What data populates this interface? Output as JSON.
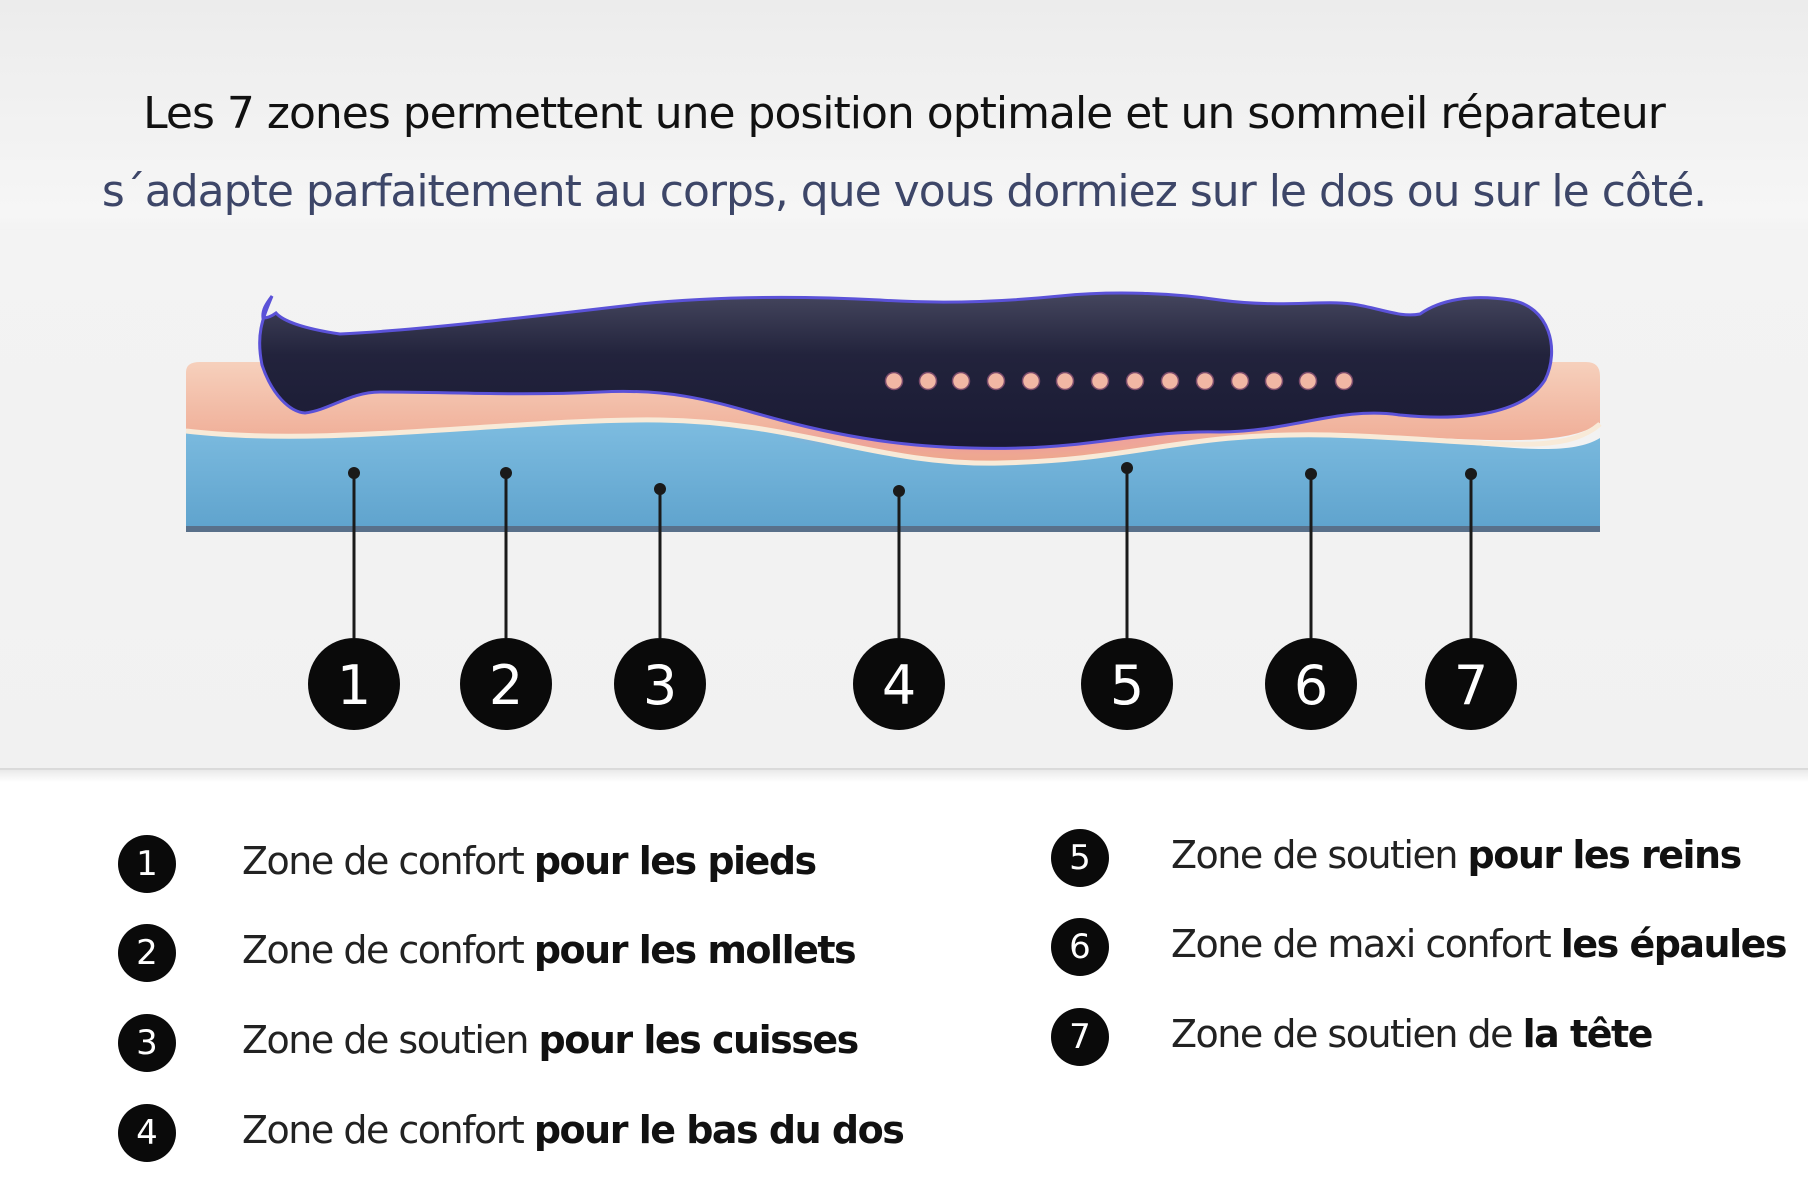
{
  "header": {
    "title": "Les 7 zones permettent une position optimale et un sommeil réparateur",
    "subtitle": "s´adapte parfaitement au corps, que vous dormiez sur le dos ou sur le côté."
  },
  "diagram": {
    "zone_labels": [
      "1",
      "2",
      "3",
      "4",
      "5",
      "6",
      "7"
    ],
    "colors": {
      "foam_base": "#6cb0d8",
      "comfort_layer": "#f1b29a",
      "body": "#23243f",
      "body_outline": "#5b52d8",
      "spine_dots": "#f1b7a4",
      "badge": "#0a0a0a"
    }
  },
  "legend": {
    "items": [
      {
        "num": "1",
        "light": "Zone de confort",
        "bold": "pour les pieds"
      },
      {
        "num": "2",
        "light": "Zone de confort",
        "bold": "pour les mollets"
      },
      {
        "num": "3",
        "light": "Zone de soutien",
        "bold": "pour les cuisses"
      },
      {
        "num": "4",
        "light": "Zone de confort",
        "bold": "pour le bas du dos"
      },
      {
        "num": "5",
        "light": "Zone de soutien",
        "bold": "pour les reins"
      },
      {
        "num": "6",
        "light": "Zone de maxi confort",
        "bold": "les épaules"
      },
      {
        "num": "7",
        "light": "Zone de soutien de",
        "bold": "la tête"
      }
    ]
  }
}
